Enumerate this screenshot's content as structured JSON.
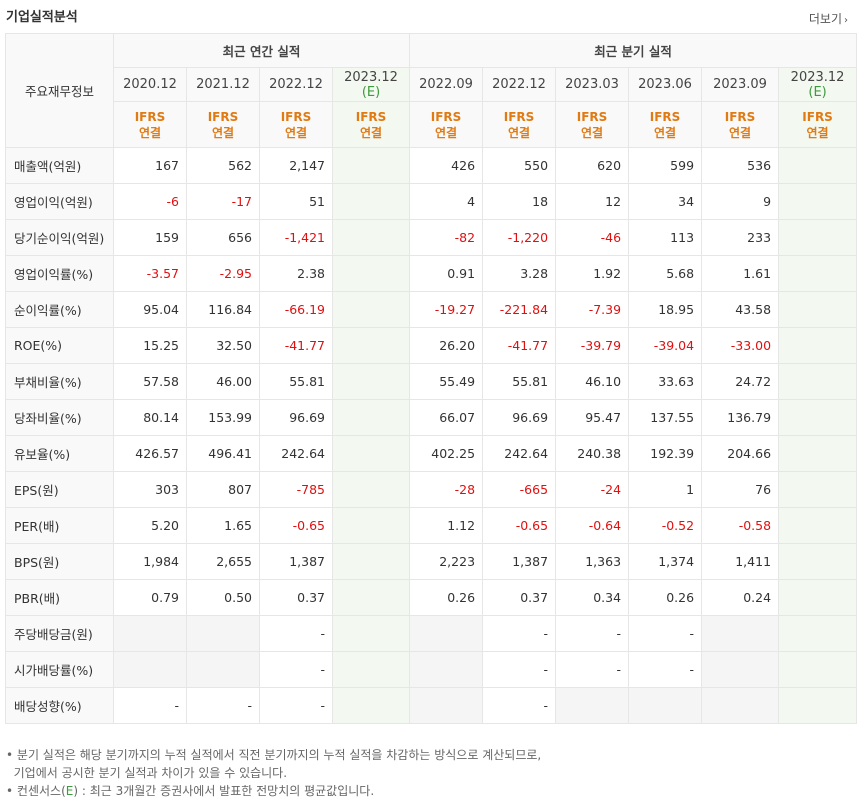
{
  "title": "기업실적분석",
  "more_label": "더보기",
  "header": {
    "row_label": "주요재무정보",
    "annual_group": "최근 연간 실적",
    "quarter_group": "최근 분기 실적",
    "annual_dates": [
      "2020.12",
      "2021.12",
      "2022.12"
    ],
    "annual_est": "2023.12",
    "quarter_dates": [
      "2022.09",
      "2022.12",
      "2023.03",
      "2023.06",
      "2023.09"
    ],
    "quarter_est": "2023.12",
    "est_mark": "(E)",
    "ifrs": "IFRS",
    "consol": "연결"
  },
  "rows": [
    {
      "label": "매출액(억원)",
      "annual": [
        "167",
        "562",
        "2,147"
      ],
      "quarter": [
        "426",
        "550",
        "620",
        "599",
        "536"
      ]
    },
    {
      "label": "영업이익(억원)",
      "annual": [
        "-6",
        "-17",
        "51"
      ],
      "quarter": [
        "4",
        "18",
        "12",
        "34",
        "9"
      ]
    },
    {
      "label": "당기순이익(억원)",
      "annual": [
        "159",
        "656",
        "-1,421"
      ],
      "quarter": [
        "-82",
        "-1,220",
        "-46",
        "113",
        "233"
      ]
    },
    {
      "label": "영업이익률(%)",
      "annual": [
        "-3.57",
        "-2.95",
        "2.38"
      ],
      "quarter": [
        "0.91",
        "3.28",
        "1.92",
        "5.68",
        "1.61"
      ]
    },
    {
      "label": "순이익률(%)",
      "annual": [
        "95.04",
        "116.84",
        "-66.19"
      ],
      "quarter": [
        "-19.27",
        "-221.84",
        "-7.39",
        "18.95",
        "43.58"
      ]
    },
    {
      "label": "ROE(%)",
      "annual": [
        "15.25",
        "32.50",
        "-41.77"
      ],
      "quarter": [
        "26.20",
        "-41.77",
        "-39.79",
        "-39.04",
        "-33.00"
      ]
    },
    {
      "label": "부채비율(%)",
      "annual": [
        "57.58",
        "46.00",
        "55.81"
      ],
      "quarter": [
        "55.49",
        "55.81",
        "46.10",
        "33.63",
        "24.72"
      ]
    },
    {
      "label": "당좌비율(%)",
      "annual": [
        "80.14",
        "153.99",
        "96.69"
      ],
      "quarter": [
        "66.07",
        "96.69",
        "95.47",
        "137.55",
        "136.79"
      ]
    },
    {
      "label": "유보율(%)",
      "annual": [
        "426.57",
        "496.41",
        "242.64"
      ],
      "quarter": [
        "402.25",
        "242.64",
        "240.38",
        "192.39",
        "204.66"
      ]
    },
    {
      "label": "EPS(원)",
      "annual": [
        "303",
        "807",
        "-785"
      ],
      "quarter": [
        "-28",
        "-665",
        "-24",
        "1",
        "76"
      ]
    },
    {
      "label": "PER(배)",
      "annual": [
        "5.20",
        "1.65",
        "-0.65"
      ],
      "quarter": [
        "1.12",
        "-0.65",
        "-0.64",
        "-0.52",
        "-0.58"
      ]
    },
    {
      "label": "BPS(원)",
      "annual": [
        "1,984",
        "2,655",
        "1,387"
      ],
      "quarter": [
        "2,223",
        "1,387",
        "1,363",
        "1,374",
        "1,411"
      ]
    },
    {
      "label": "PBR(배)",
      "annual": [
        "0.79",
        "0.50",
        "0.37"
      ],
      "quarter": [
        "0.26",
        "0.37",
        "0.34",
        "0.26",
        "0.24"
      ]
    },
    {
      "label": "주당배당금(원)",
      "annual": [
        "",
        "",
        "-"
      ],
      "quarter": [
        "",
        "-",
        "-",
        "-",
        ""
      ]
    },
    {
      "label": "시가배당률(%)",
      "annual": [
        "",
        "",
        "-"
      ],
      "quarter": [
        "",
        "-",
        "-",
        "-",
        ""
      ]
    },
    {
      "label": "배당성향(%)",
      "annual": [
        "-",
        "-",
        "-"
      ],
      "quarter": [
        "",
        "-",
        "",
        "",
        ""
      ]
    }
  ],
  "notes": {
    "line1": "분기 실적은 해당 분기까지의 누적 실적에서 직전 분기까지의 누적 실적을 차감하는 방식으로 계산되므로,",
    "line2": "기업에서 공시한 분기 실적과 차이가 있을 수 있습니다.",
    "line3_a": "컨센서스(",
    "line3_e": "E",
    "line3_b": ") : 최근 3개월간 증권사에서 발표한 전망치의 평균값입니다."
  },
  "colors": {
    "negative": "#e01010",
    "ifrs": "#e07a13",
    "estimate": "#3d9b3d",
    "estimate_bg": "#f3f8f1"
  }
}
